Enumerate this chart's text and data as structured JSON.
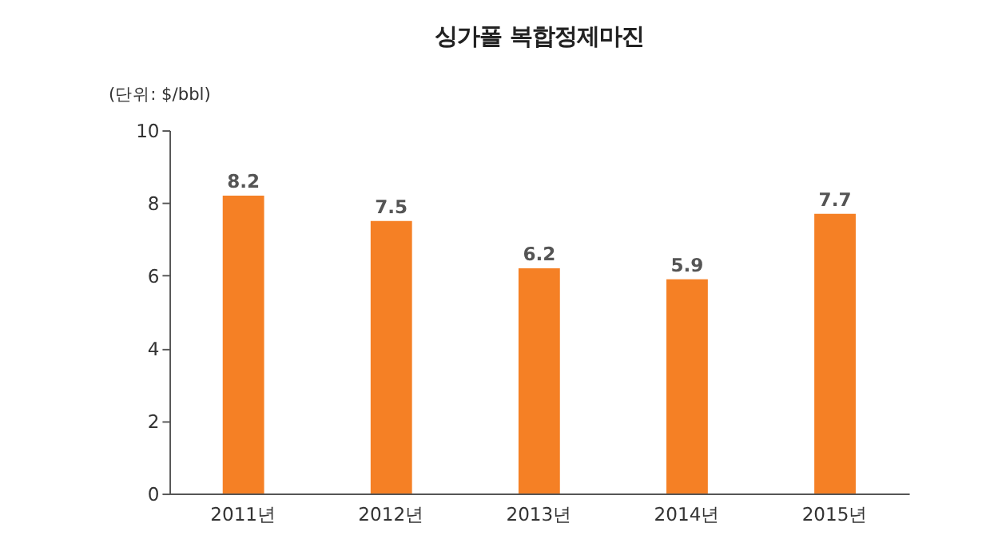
{
  "chart_data": {
    "type": "bar",
    "title": "싱가폴 복합정제마진",
    "ylabel": "(단위: $/bbl)",
    "categories": [
      "2011년",
      "2012년",
      "2013년",
      "2014년",
      "2015년"
    ],
    "values": [
      8.2,
      7.5,
      6.2,
      5.9,
      7.7
    ],
    "color": "#f58025",
    "ylim": [
      0,
      10
    ],
    "yticks": [
      0,
      2,
      4,
      6,
      8,
      10
    ],
    "grid": false,
    "data_labels": true
  }
}
